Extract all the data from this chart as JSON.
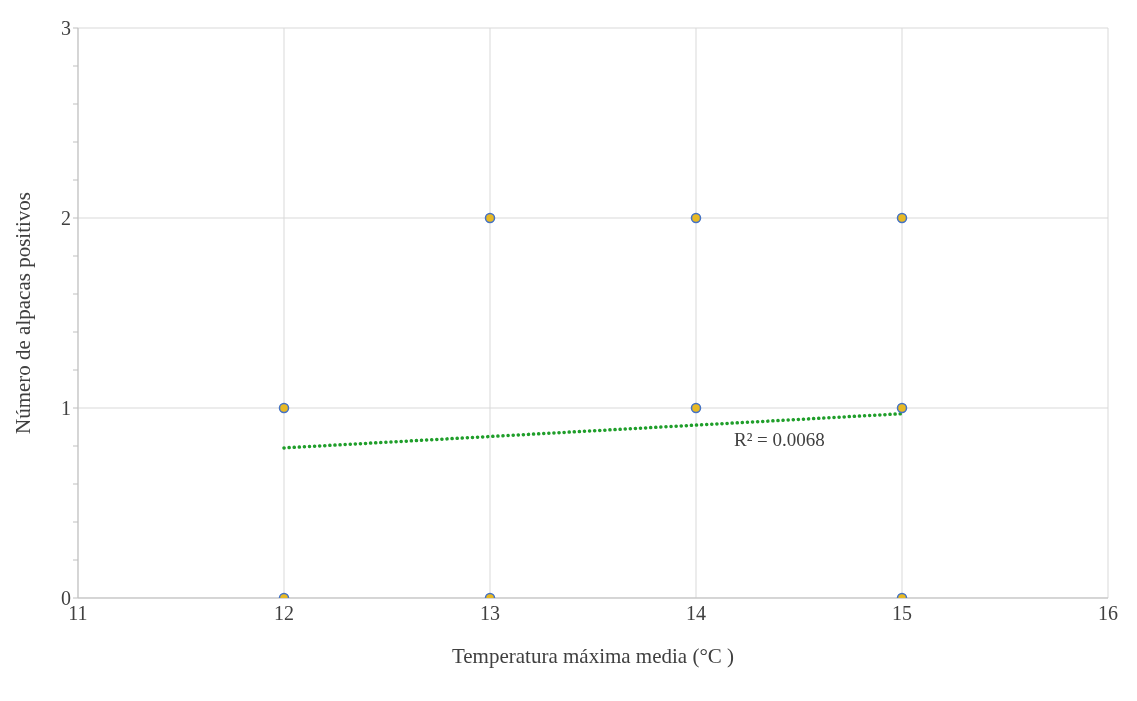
{
  "chart_data": {
    "type": "scatter",
    "xlabel": "Temperatura máxima media (°C )",
    "ylabel": "Número de alpacas positivos",
    "series": [
      {
        "color": "#e8b923",
        "marker": "circle",
        "x": [
          12,
          12,
          13,
          13,
          14,
          14,
          15,
          15,
          15
        ],
        "values": [
          1,
          0,
          2,
          0,
          2,
          1,
          2,
          1,
          0
        ]
      },
      {
        "type": "line",
        "color": "#1f9e2a",
        "marker": "none",
        "line_style": "dotted",
        "x": [
          12,
          15
        ],
        "values": [
          0.79,
          0.97
        ]
      }
    ],
    "xlim": [
      11,
      16
    ],
    "xticks": [
      11,
      12,
      13,
      14,
      15,
      16
    ],
    "ylim": [
      0,
      3
    ],
    "yticks": [
      0,
      {
        "value": 0.2,
        "label": null
      },
      {
        "value": 0.4,
        "label": null
      },
      {
        "value": 0.6,
        "label": null
      },
      {
        "value": 0.8,
        "label": null
      },
      1,
      {
        "value": 1.2,
        "label": null
      },
      {
        "value": 1.4,
        "label": null
      },
      {
        "value": 1.6,
        "label": null
      },
      {
        "value": 1.8,
        "label": null
      },
      2,
      {
        "value": 2.2,
        "label": null
      },
      {
        "value": 2.4,
        "label": null
      },
      {
        "value": 2.6,
        "label": null
      },
      {
        "value": 2.8,
        "label": null
      },
      3
    ],
    "grid": true,
    "annotations": [
      "R² = 0.0068"
    ]
  }
}
